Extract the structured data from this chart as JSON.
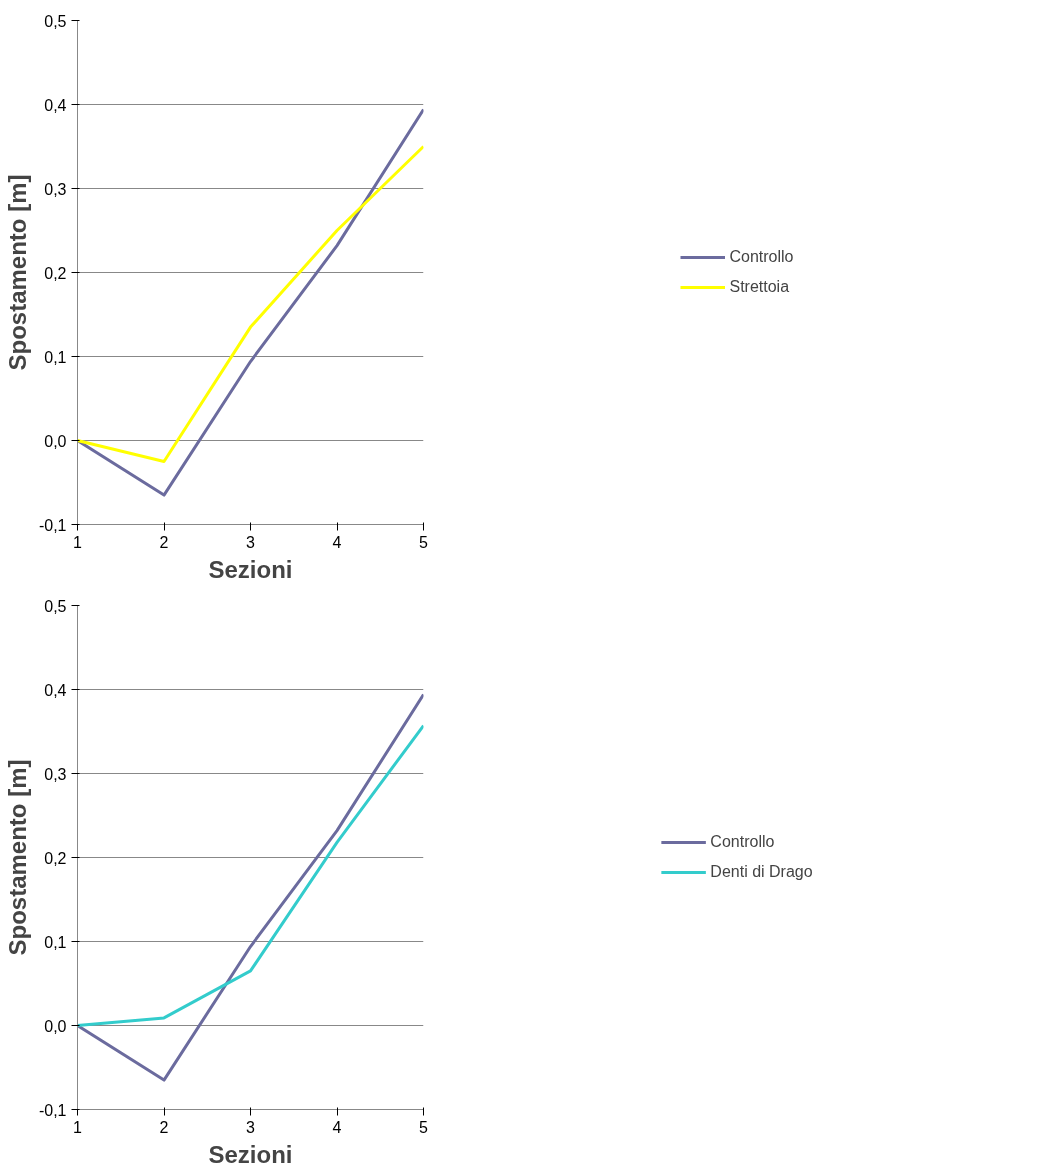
{
  "chart_data": [
    {
      "type": "line",
      "xlabel": "Sezioni",
      "ylabel": "Spostamento [m]",
      "x": [
        1,
        2,
        3,
        4,
        5
      ],
      "xlim": [
        1,
        5
      ],
      "xticks": [
        1,
        2,
        3,
        4,
        5
      ],
      "ylim": [
        -0.1,
        0.5
      ],
      "yticks": [
        {
          "value": -0.1,
          "label": "-0,1"
        },
        {
          "value": 0,
          "label": "0,0"
        },
        {
          "value": 0.1,
          "label": "0,1"
        },
        {
          "value": 0.2,
          "label": "0,2"
        },
        {
          "value": 0.3,
          "label": "0,3"
        },
        {
          "value": 0.4,
          "label": "0,4"
        },
        {
          "value": 0.5,
          "label": "0,5"
        }
      ],
      "grid": "y",
      "legend": "right",
      "series": [
        {
          "name": "Controllo",
          "color": "#6b6b9e",
          "values": [
            0,
            -0.065,
            0.094,
            0.232,
            0.394
          ]
        },
        {
          "name": "Strettoia",
          "color": "#ffff00",
          "values": [
            0,
            -0.025,
            0.135,
            0.25,
            0.35
          ]
        }
      ]
    },
    {
      "type": "line",
      "xlabel": "Sezioni",
      "ylabel": "Spostamento [m]",
      "x": [
        1,
        2,
        3,
        4,
        5
      ],
      "xlim": [
        1,
        5
      ],
      "xticks": [
        1,
        2,
        3,
        4,
        5
      ],
      "ylim": [
        -0.1,
        0.5
      ],
      "yticks": [
        {
          "value": -0.1,
          "label": "-0,1"
        },
        {
          "value": 0,
          "label": "0,0"
        },
        {
          "value": 0.1,
          "label": "0,1"
        },
        {
          "value": 0.2,
          "label": "0,2"
        },
        {
          "value": 0.3,
          "label": "0,3"
        },
        {
          "value": 0.4,
          "label": "0,4"
        },
        {
          "value": 0.5,
          "label": "0,5"
        }
      ],
      "grid": "y",
      "legend": "right",
      "series": [
        {
          "name": "Controllo",
          "color": "#6b6b9e",
          "values": [
            0,
            -0.065,
            0.094,
            0.232,
            0.394
          ]
        },
        {
          "name": "Denti di Drago",
          "color": "#33cccc",
          "values": [
            0,
            0.009,
            0.065,
            0.218,
            0.357
          ]
        }
      ]
    }
  ]
}
